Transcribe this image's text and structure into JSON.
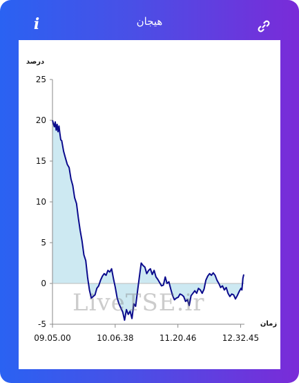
{
  "header": {
    "title": "هیجان",
    "info_icon": "i",
    "link_icon": "link-icon"
  },
  "watermark": "LiveTSE.ir",
  "colors": {
    "line": "#0a0a8c",
    "fill": "#cde9f2",
    "gradient_start": "#2a62f2",
    "gradient_end": "#7a2bd8"
  },
  "chart_data": {
    "type": "area",
    "title": "",
    "ylabel": "درصد",
    "xlabel": "زمان",
    "ylim": [
      -5,
      25
    ],
    "yticks": [
      -5,
      0,
      5,
      10,
      15,
      20,
      25
    ],
    "xticks": [
      "09.05.00",
      "10.06.38",
      "11.20.46",
      "12.32.45"
    ],
    "xlim_minutes": [
      0,
      207.75
    ],
    "grid": false,
    "series": [
      {
        "x_minutes": [
          0,
          1,
          2,
          3,
          4,
          5,
          6,
          7,
          8,
          9,
          10,
          12,
          14,
          16,
          18,
          20,
          22,
          24,
          26,
          28,
          30,
          32,
          34,
          36,
          38,
          40,
          42,
          44,
          46,
          48,
          50,
          52,
          54,
          56,
          58,
          60,
          62,
          64,
          66,
          68,
          70,
          72,
          74,
          76,
          78,
          80,
          82,
          84,
          86,
          88,
          90,
          92,
          94,
          96,
          98,
          100,
          102,
          104,
          106,
          108,
          110,
          112,
          114,
          116,
          118,
          120,
          122,
          124,
          126,
          128,
          130,
          132,
          134,
          136,
          138,
          140,
          142,
          144,
          146,
          148,
          150,
          152,
          154,
          156,
          158,
          160,
          162,
          164,
          166,
          168,
          170,
          172,
          174,
          176,
          178,
          180,
          182,
          184,
          186,
          188,
          190,
          192,
          194,
          196,
          198,
          200,
          202,
          204,
          205,
          206,
          207
        ],
        "values": [
          20,
          19.6,
          19.2,
          19.8,
          18.8,
          19.5,
          18.6,
          19.3,
          18.4,
          17.6,
          17.5,
          16.2,
          15.4,
          14.6,
          14.2,
          12.8,
          12.0,
          10.5,
          9.8,
          8.0,
          6.5,
          5.2,
          3.5,
          2.8,
          0.8,
          -0.8,
          -1.8,
          -1.6,
          -1.4,
          -0.6,
          -0.3,
          0.4,
          0.9,
          1.2,
          1.0,
          1.6,
          1.4,
          1.8,
          0.6,
          -0.5,
          -1.8,
          -2.5,
          -3.0,
          -3.5,
          -4.5,
          -3.2,
          -3.8,
          -3.4,
          -4.3,
          -2.5,
          -2.8,
          -1.0,
          0.8,
          2.5,
          2.2,
          2.0,
          1.2,
          1.6,
          1.8,
          1.1,
          1.6,
          0.8,
          0.5,
          0.1,
          -0.3,
          -0.2,
          0.8,
          0.0,
          0.2,
          -0.7,
          -1.5,
          -2.0,
          -1.8,
          -1.7,
          -1.3,
          -1.4,
          -1.6,
          -2.2,
          -2.0,
          -2.7,
          -1.5,
          -1.2,
          -0.9,
          -1.2,
          -0.6,
          -0.8,
          -1.2,
          -0.7,
          0.4,
          0.9,
          1.2,
          1.0,
          1.3,
          1.0,
          0.4,
          0.0,
          -0.5,
          -0.3,
          -0.8,
          -0.5,
          -1.2,
          -1.6,
          -1.3,
          -1.4,
          -1.9,
          -1.5,
          -1.0,
          -0.6,
          -0.8,
          0.6,
          1.1
        ]
      }
    ]
  }
}
